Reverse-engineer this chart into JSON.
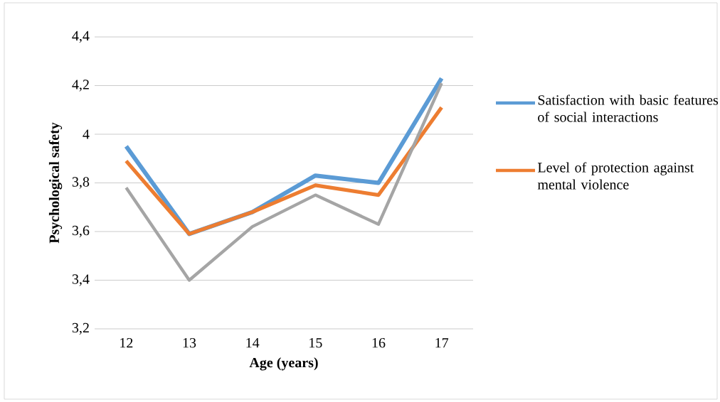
{
  "chart_data": {
    "type": "line",
    "xlabel": "Age (years)",
    "ylabel": "Psychological safety",
    "categories": [
      "12",
      "13",
      "14",
      "15",
      "16",
      "17"
    ],
    "series": [
      {
        "name": "Satisfaction with basic features of social interactions",
        "color": "#5b9bd5",
        "values": [
          3.95,
          3.59,
          3.68,
          3.83,
          3.8,
          4.23
        ]
      },
      {
        "name": "Level of protection against mental violence",
        "color": "#ed7d31",
        "values": [
          3.89,
          3.59,
          3.68,
          3.79,
          3.75,
          4.11
        ]
      },
      {
        "color": "#a5a5a5",
        "values": [
          3.78,
          3.4,
          3.62,
          3.75,
          3.63,
          4.21
        ]
      }
    ],
    "ylim": [
      3.2,
      4.4
    ],
    "yticks": [
      {
        "value": 3.2,
        "label": "3,2"
      },
      {
        "value": 3.4,
        "label": "3,4"
      },
      {
        "value": 3.6,
        "label": "3,6"
      },
      {
        "value": 3.8,
        "label": "3,8"
      },
      4,
      {
        "value": 4.2,
        "label": "4,2"
      },
      {
        "value": 4.4,
        "label": "4,4"
      }
    ],
    "grid": "y",
    "legend": "right",
    "marker": "none",
    "line_style": "solid"
  }
}
